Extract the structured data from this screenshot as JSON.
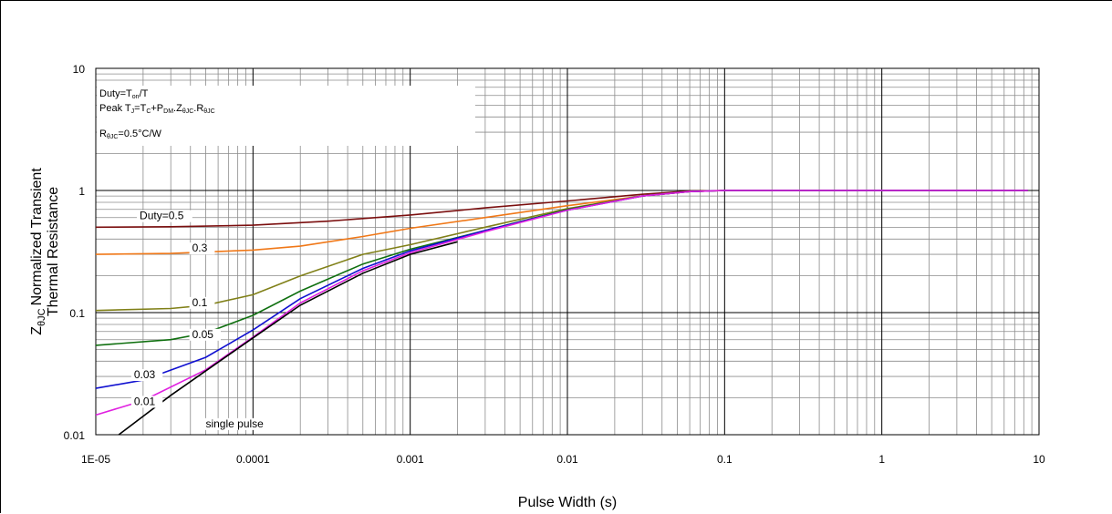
{
  "chart_data": {
    "type": "line",
    "xscale": "log",
    "yscale": "log",
    "xlim": [
      1e-05,
      10
    ],
    "ylim": [
      0.01,
      10
    ],
    "xlabel": "Pulse Width (s)",
    "ylabel_line1": "Normalized Transient",
    "ylabel_line2": "Thermal Resistance",
    "ylabel_symbol": "Z",
    "ylabel_symbol_sub": "θJC",
    "xticks": [
      {
        "value": 1e-05,
        "label": "1E-05"
      },
      {
        "value": 0.0001,
        "label": "0.0001"
      },
      {
        "value": 0.001,
        "label": "0.001"
      },
      {
        "value": 0.01,
        "label": "0.01"
      },
      {
        "value": 0.1,
        "label": "0.1"
      },
      {
        "value": 1,
        "label": "1"
      },
      {
        "value": 10,
        "label": "10"
      }
    ],
    "yticks": [
      {
        "value": 0.01,
        "label": "0.01"
      },
      {
        "value": 0.1,
        "label": "0.1"
      },
      {
        "value": 1,
        "label": "1"
      },
      {
        "value": 10,
        "label": "10"
      }
    ],
    "grid": true,
    "annotations": {
      "duty_text": "Duty=T",
      "duty_sub": "on",
      "duty_suffix": "/T",
      "peak_text": "Peak T",
      "peak_sub": "J",
      "peak_eq": "=T",
      "peak_sub_c": "C",
      "peak_plus": "+P",
      "peak_sub_dm": "DM",
      "peak_dot1": ".Z",
      "peak_sub_z": "θJC",
      "peak_dot2": ".R",
      "peak_sub_r": "θJC",
      "rth_prefix": "R",
      "rth_sub": "θJC",
      "rth_value": "=0.5°C/W"
    },
    "series": [
      {
        "name": "Duty=0.5",
        "color": "#7b0f0f",
        "x": [
          1e-05,
          3e-05,
          0.0001,
          0.0003,
          0.001,
          0.003,
          0.01,
          0.03,
          0.06,
          0.1,
          1,
          8.5
        ],
        "y": [
          0.5,
          0.505,
          0.52,
          0.56,
          0.63,
          0.72,
          0.82,
          0.93,
          0.99,
          1.0,
          1.0,
          1.0
        ]
      },
      {
        "name": "0.3",
        "color": "#f07818",
        "x": [
          1e-05,
          3e-05,
          0.0001,
          0.0002,
          0.0005,
          0.001,
          0.003,
          0.01,
          0.03,
          0.06,
          0.1,
          1,
          8.5
        ],
        "y": [
          0.3,
          0.305,
          0.325,
          0.35,
          0.42,
          0.49,
          0.6,
          0.75,
          0.9,
          0.98,
          1.0,
          1.0,
          1.0
        ]
      },
      {
        "name": "0.1",
        "color": "#808018",
        "x": [
          1e-05,
          3e-05,
          5e-05,
          0.0001,
          0.0002,
          0.0005,
          0.001,
          0.003,
          0.01,
          0.03,
          0.06,
          0.1,
          1,
          8.5
        ],
        "y": [
          0.104,
          0.108,
          0.115,
          0.14,
          0.2,
          0.3,
          0.36,
          0.5,
          0.71,
          0.9,
          0.98,
          1.0,
          1.0,
          1.0
        ]
      },
      {
        "name": "0.05",
        "color": "#107010",
        "x": [
          1e-05,
          3e-05,
          5e-05,
          0.0001,
          0.0002,
          0.0005,
          0.001,
          0.003,
          0.01,
          0.03,
          0.06,
          0.1,
          1,
          8.5
        ],
        "y": [
          0.054,
          0.06,
          0.068,
          0.095,
          0.15,
          0.25,
          0.33,
          0.47,
          0.7,
          0.9,
          0.98,
          1.0,
          1.0,
          1.0
        ]
      },
      {
        "name": "0.03",
        "color": "#1010d0",
        "x": [
          1e-05,
          2e-05,
          5e-05,
          0.0001,
          0.0002,
          0.0005,
          0.001,
          0.003,
          0.01,
          0.03,
          0.06,
          0.1,
          1,
          8.5
        ],
        "y": [
          0.024,
          0.028,
          0.043,
          0.072,
          0.13,
          0.23,
          0.32,
          0.47,
          0.69,
          0.9,
          0.98,
          1.0,
          1.0,
          1.0
        ]
      },
      {
        "name": "0.01",
        "color": "#e020e0",
        "x": [
          1e-05,
          2e-05,
          5e-05,
          0.0001,
          0.0002,
          0.0005,
          0.001,
          0.003,
          0.01,
          0.03,
          0.06,
          0.1,
          1,
          8.5
        ],
        "y": [
          0.0145,
          0.019,
          0.034,
          0.063,
          0.12,
          0.22,
          0.31,
          0.46,
          0.69,
          0.9,
          0.98,
          1.0,
          1.0,
          1.0
        ]
      },
      {
        "name": "single pulse",
        "color": "#000000",
        "x": [
          1.4e-05,
          3e-05,
          0.0001,
          0.0002,
          0.0005,
          0.001,
          0.002
        ],
        "y": [
          0.01,
          0.021,
          0.062,
          0.115,
          0.21,
          0.3,
          0.38
        ]
      }
    ]
  }
}
